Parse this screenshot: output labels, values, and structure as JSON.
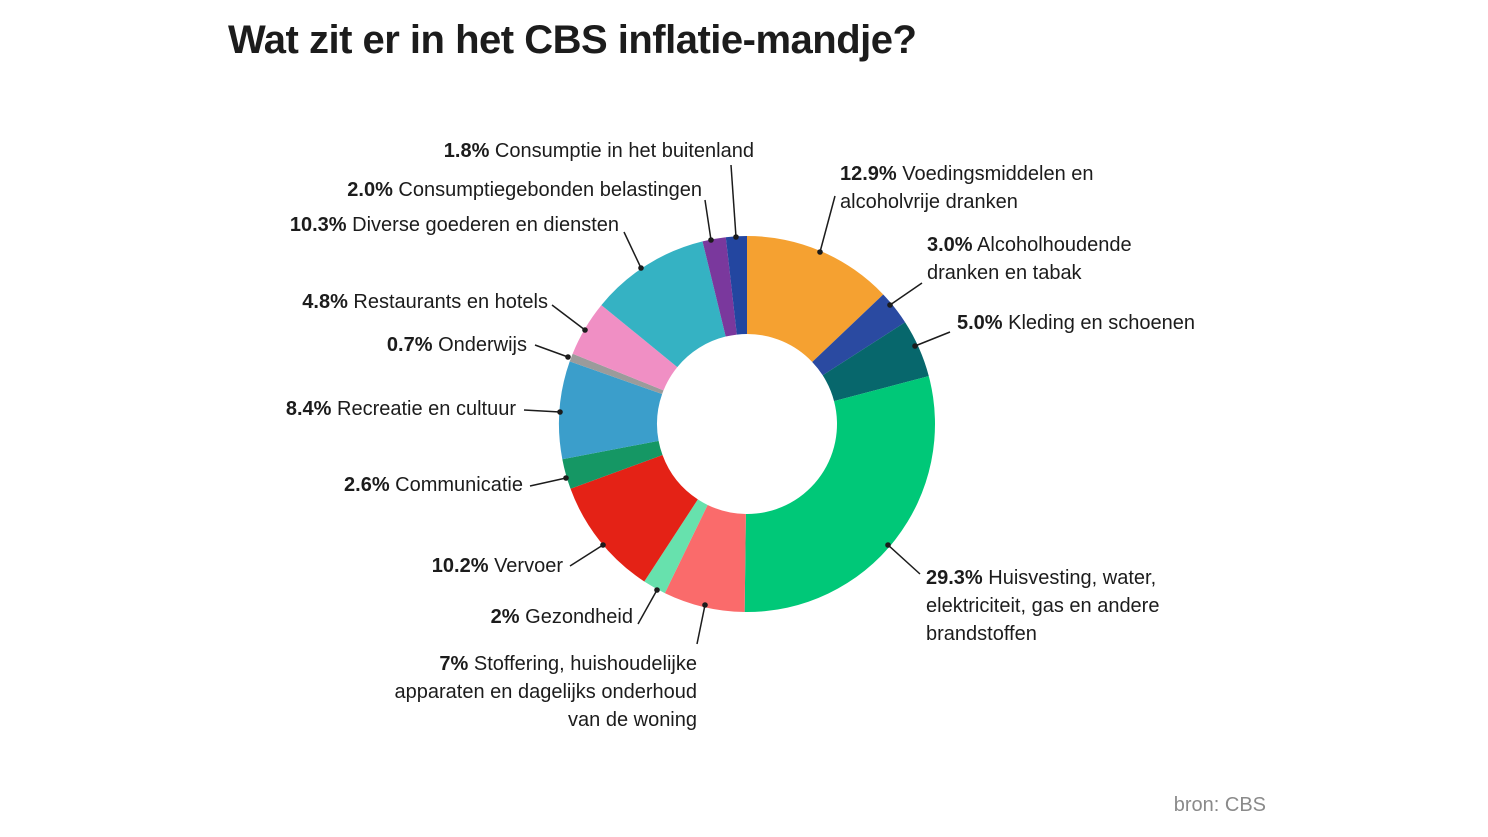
{
  "chart_data": {
    "type": "pie",
    "title": "Wat zit er in het CBS inflatie-mandje?",
    "source": "bron: CBS",
    "slices": [
      {
        "pct_label": "12.9%",
        "value": 12.9,
        "lines": [
          "Voedingsmiddelen en",
          "alcoholvrije dranken"
        ],
        "color": "#f5a131"
      },
      {
        "pct_label": "3.0%",
        "value": 3.0,
        "lines": [
          "Alcoholhoudende",
          "dranken en tabak"
        ],
        "color": "#2a4aa1"
      },
      {
        "pct_label": "5.0%",
        "value": 5.0,
        "lines": [
          "Kleding en schoenen"
        ],
        "color": "#07676c"
      },
      {
        "pct_label": "29.3%",
        "value": 29.3,
        "lines": [
          "Huisvesting, water,",
          "elektriciteit, gas en andere",
          "brandstoffen"
        ],
        "color": "#00c878"
      },
      {
        "pct_label": "7%",
        "value": 7,
        "lines": [
          "Stoffering, huishoudelijke",
          "apparaten en dagelijks onderhoud",
          "van de woning"
        ],
        "color": "#fa6b6b"
      },
      {
        "pct_label": "2%",
        "value": 2,
        "lines": [
          "Gezondheid"
        ],
        "color": "#67e1ad"
      },
      {
        "pct_label": "10.2%",
        "value": 10.2,
        "lines": [
          "Vervoer"
        ],
        "color": "#e42216"
      },
      {
        "pct_label": "2.6%",
        "value": 2.6,
        "lines": [
          "Communicatie"
        ],
        "color": "#159764"
      },
      {
        "pct_label": "8.4%",
        "value": 8.4,
        "lines": [
          "Recreatie en cultuur"
        ],
        "color": "#3b9ecb"
      },
      {
        "pct_label": "0.7%",
        "value": 0.7,
        "lines": [
          "Onderwijs"
        ],
        "color": "#9b9b9b"
      },
      {
        "pct_label": "4.8%",
        "value": 4.8,
        "lines": [
          "Restaurants en hotels"
        ],
        "color": "#f08fc4"
      },
      {
        "pct_label": "10.3%",
        "value": 10.3,
        "lines": [
          "Diverse goederen en diensten"
        ],
        "color": "#35b2c3"
      },
      {
        "pct_label": "2.0%",
        "value": 2.0,
        "lines": [
          "Consumptiegebonden belastingen"
        ],
        "color": "#7a389d"
      },
      {
        "pct_label": "1.8%",
        "value": 1.8,
        "lines": [
          "Consumptie in het buitenland"
        ],
        "color": "#2346a0"
      }
    ]
  }
}
